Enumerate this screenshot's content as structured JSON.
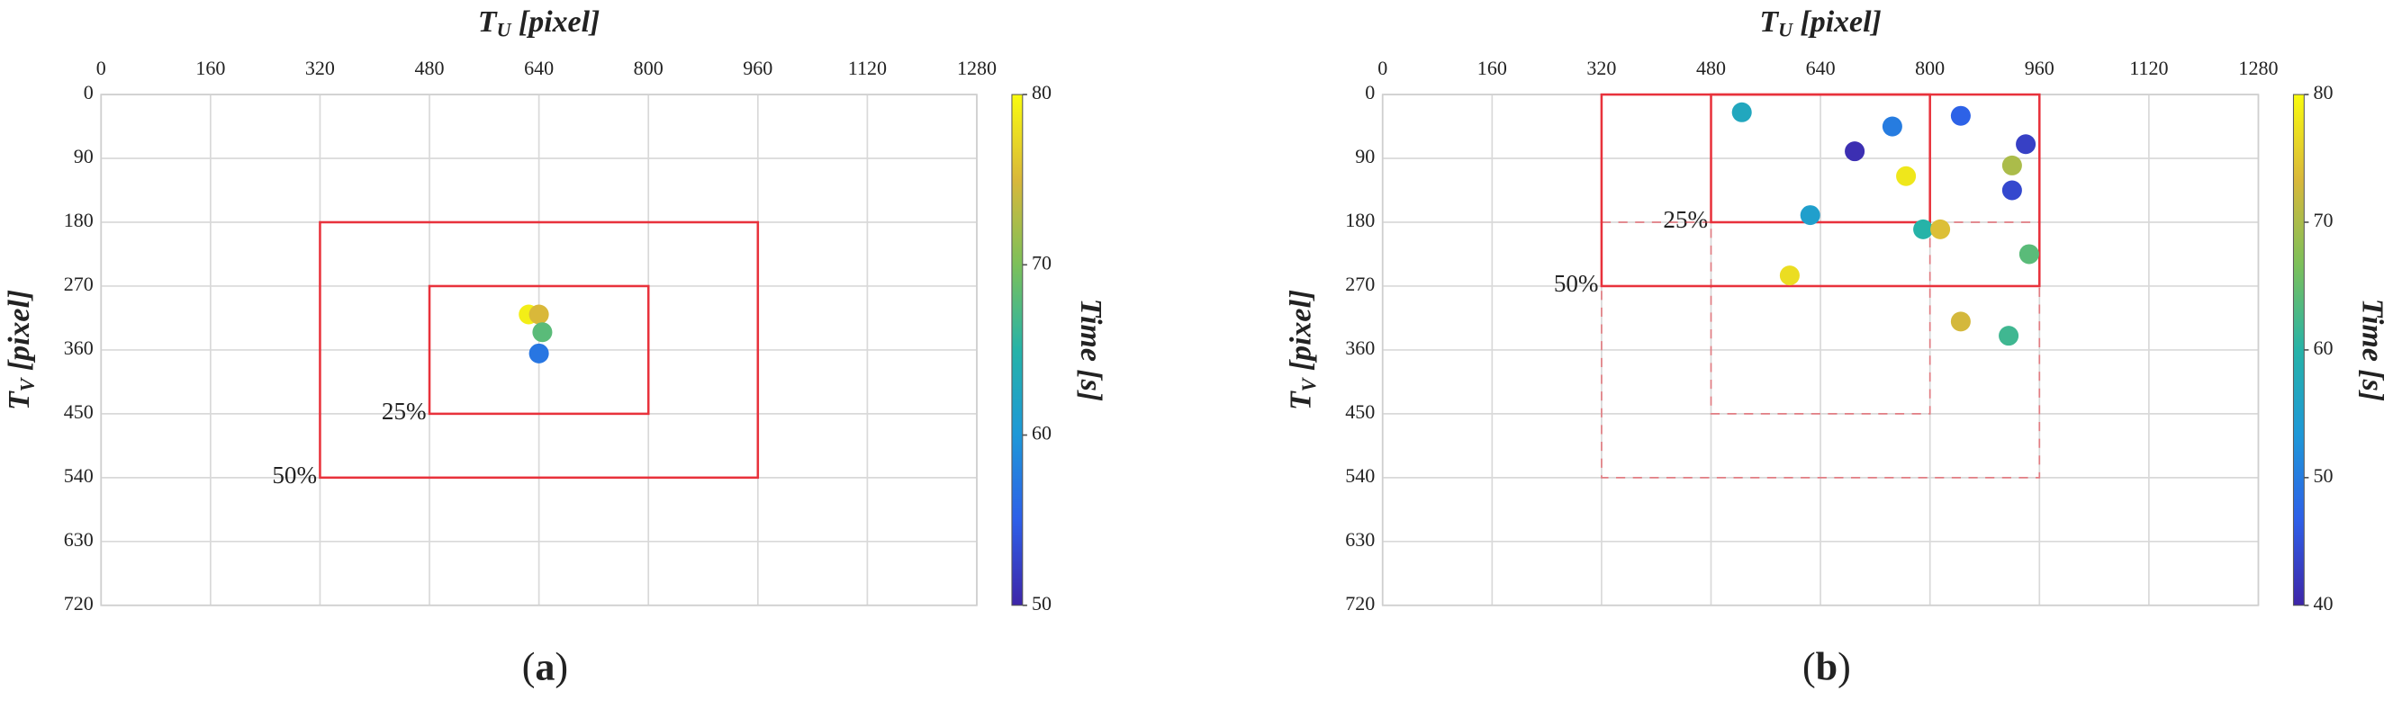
{
  "chart_data": [
    {
      "type": "scatter",
      "panel_label": [
        "(",
        "a",
        ")"
      ],
      "xlabel": {
        "main": "T",
        "sub": "U",
        "rest": " [pixel]"
      },
      "ylabel": {
        "main": "T",
        "sub": "V",
        "rest": " [pixel]"
      },
      "clabel": "Time [s]",
      "xlim": [
        0,
        1280
      ],
      "xticks": [
        0,
        160,
        320,
        480,
        640,
        800,
        960,
        1120,
        1280
      ],
      "ylim": [
        0,
        720
      ],
      "yticks": [
        0,
        90,
        180,
        270,
        360,
        450,
        540,
        630,
        720
      ],
      "clim": [
        50,
        80
      ],
      "cticks": [
        50,
        60,
        70,
        80
      ],
      "grid": true,
      "colormap": [
        "#3e26a8",
        "#2e5fe8",
        "#1e98d8",
        "#26b3a8",
        "#7cc05a",
        "#d9b83a",
        "#f9fb0e"
      ],
      "rect_color": "#e8323c",
      "rects": [
        {
          "label": "50%",
          "x": [
            320,
            960
          ],
          "y": [
            180,
            540
          ],
          "dashed": false
        },
        {
          "label": "25%",
          "x": [
            480,
            800
          ],
          "y": [
            270,
            450
          ],
          "dashed": false
        }
      ],
      "x": [
        625,
        640,
        645,
        640
      ],
      "y": [
        310,
        310,
        335,
        365
      ],
      "time": [
        79,
        75,
        68,
        57
      ]
    },
    {
      "type": "scatter",
      "panel_label": [
        "(",
        "b",
        ")"
      ],
      "xlabel": {
        "main": "T",
        "sub": "U",
        "rest": " [pixel]"
      },
      "ylabel": {
        "main": "T",
        "sub": "V",
        "rest": " [pixel]"
      },
      "clabel": "Time [s]",
      "xlim": [
        0,
        1280
      ],
      "xticks": [
        0,
        160,
        320,
        480,
        640,
        800,
        960,
        1120,
        1280
      ],
      "ylim": [
        0,
        720
      ],
      "yticks": [
        0,
        90,
        180,
        270,
        360,
        450,
        540,
        630,
        720
      ],
      "clim": [
        40,
        80
      ],
      "cticks": [
        40,
        50,
        60,
        70,
        80
      ],
      "grid": true,
      "colormap": [
        "#3e26a8",
        "#2e5fe8",
        "#1e98d8",
        "#26b3a8",
        "#7cc05a",
        "#d9b83a",
        "#f9fb0e"
      ],
      "rect_color": "#e8323c",
      "rects": [
        {
          "label": "50%",
          "x": [
            320,
            960
          ],
          "y": [
            0,
            270
          ],
          "dashed": false
        },
        {
          "label": "25%",
          "x": [
            480,
            800
          ],
          "y": [
            0,
            180
          ],
          "dashed": false
        },
        {
          "x": [
            320,
            960
          ],
          "y": [
            180,
            540
          ],
          "dashed": true
        },
        {
          "x": [
            480,
            800
          ],
          "y": [
            180,
            450
          ],
          "dashed": true
        }
      ],
      "x": [
        525,
        745,
        845,
        940,
        690,
        920,
        765,
        920,
        625,
        790,
        815,
        945,
        595,
        845,
        915
      ],
      "y": [
        25,
        45,
        30,
        70,
        80,
        100,
        115,
        135,
        170,
        190,
        190,
        225,
        255,
        320,
        340
      ],
      "time": [
        57,
        50,
        47,
        43,
        41,
        70,
        78,
        44,
        55,
        60,
        74,
        64,
        77,
        73,
        62
      ]
    }
  ]
}
